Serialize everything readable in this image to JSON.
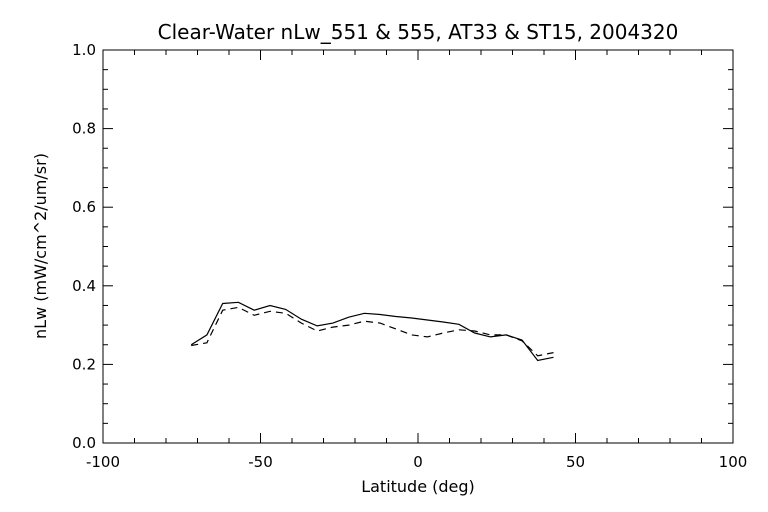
{
  "chart_data": {
    "type": "line",
    "title": "Clear-Water nLw_551 & 555, AT33 & ST15, 2004320",
    "xlabel": "Latitude (deg)",
    "ylabel": "nLw (mW/cm^2/um/sr)",
    "xlim": [
      -100,
      100
    ],
    "ylim": [
      0.0,
      1.0
    ],
    "x_ticks": [
      "-100",
      "-50",
      "0",
      "50",
      "100"
    ],
    "y_ticks": [
      "0.0",
      "0.2",
      "0.4",
      "0.6",
      "0.8",
      "1.0"
    ],
    "grid": false,
    "series": [
      {
        "style": "solid",
        "color": "#000000",
        "x": [
          -72,
          -67,
          -62,
          -57,
          -52,
          -47,
          -42,
          -37,
          -32,
          -27,
          -22,
          -17,
          -12,
          -7,
          -2,
          3,
          8,
          13,
          18,
          23,
          28,
          33,
          38,
          43
        ],
        "y": [
          0.25,
          0.275,
          0.355,
          0.358,
          0.338,
          0.35,
          0.34,
          0.315,
          0.298,
          0.305,
          0.32,
          0.33,
          0.327,
          0.322,
          0.318,
          0.313,
          0.308,
          0.302,
          0.28,
          0.27,
          0.275,
          0.262,
          0.21,
          0.218
        ]
      },
      {
        "style": "dashed",
        "color": "#000000",
        "x": [
          -72,
          -67,
          -62,
          -57,
          -52,
          -47,
          -42,
          -37,
          -32,
          -27,
          -22,
          -17,
          -12,
          -7,
          -2,
          3,
          8,
          13,
          18,
          23,
          28,
          33,
          38,
          43
        ],
        "y": [
          0.248,
          0.255,
          0.338,
          0.345,
          0.325,
          0.335,
          0.33,
          0.305,
          0.285,
          0.295,
          0.3,
          0.31,
          0.305,
          0.29,
          0.275,
          0.27,
          0.28,
          0.288,
          0.285,
          0.275,
          0.275,
          0.26,
          0.222,
          0.23
        ]
      }
    ]
  }
}
